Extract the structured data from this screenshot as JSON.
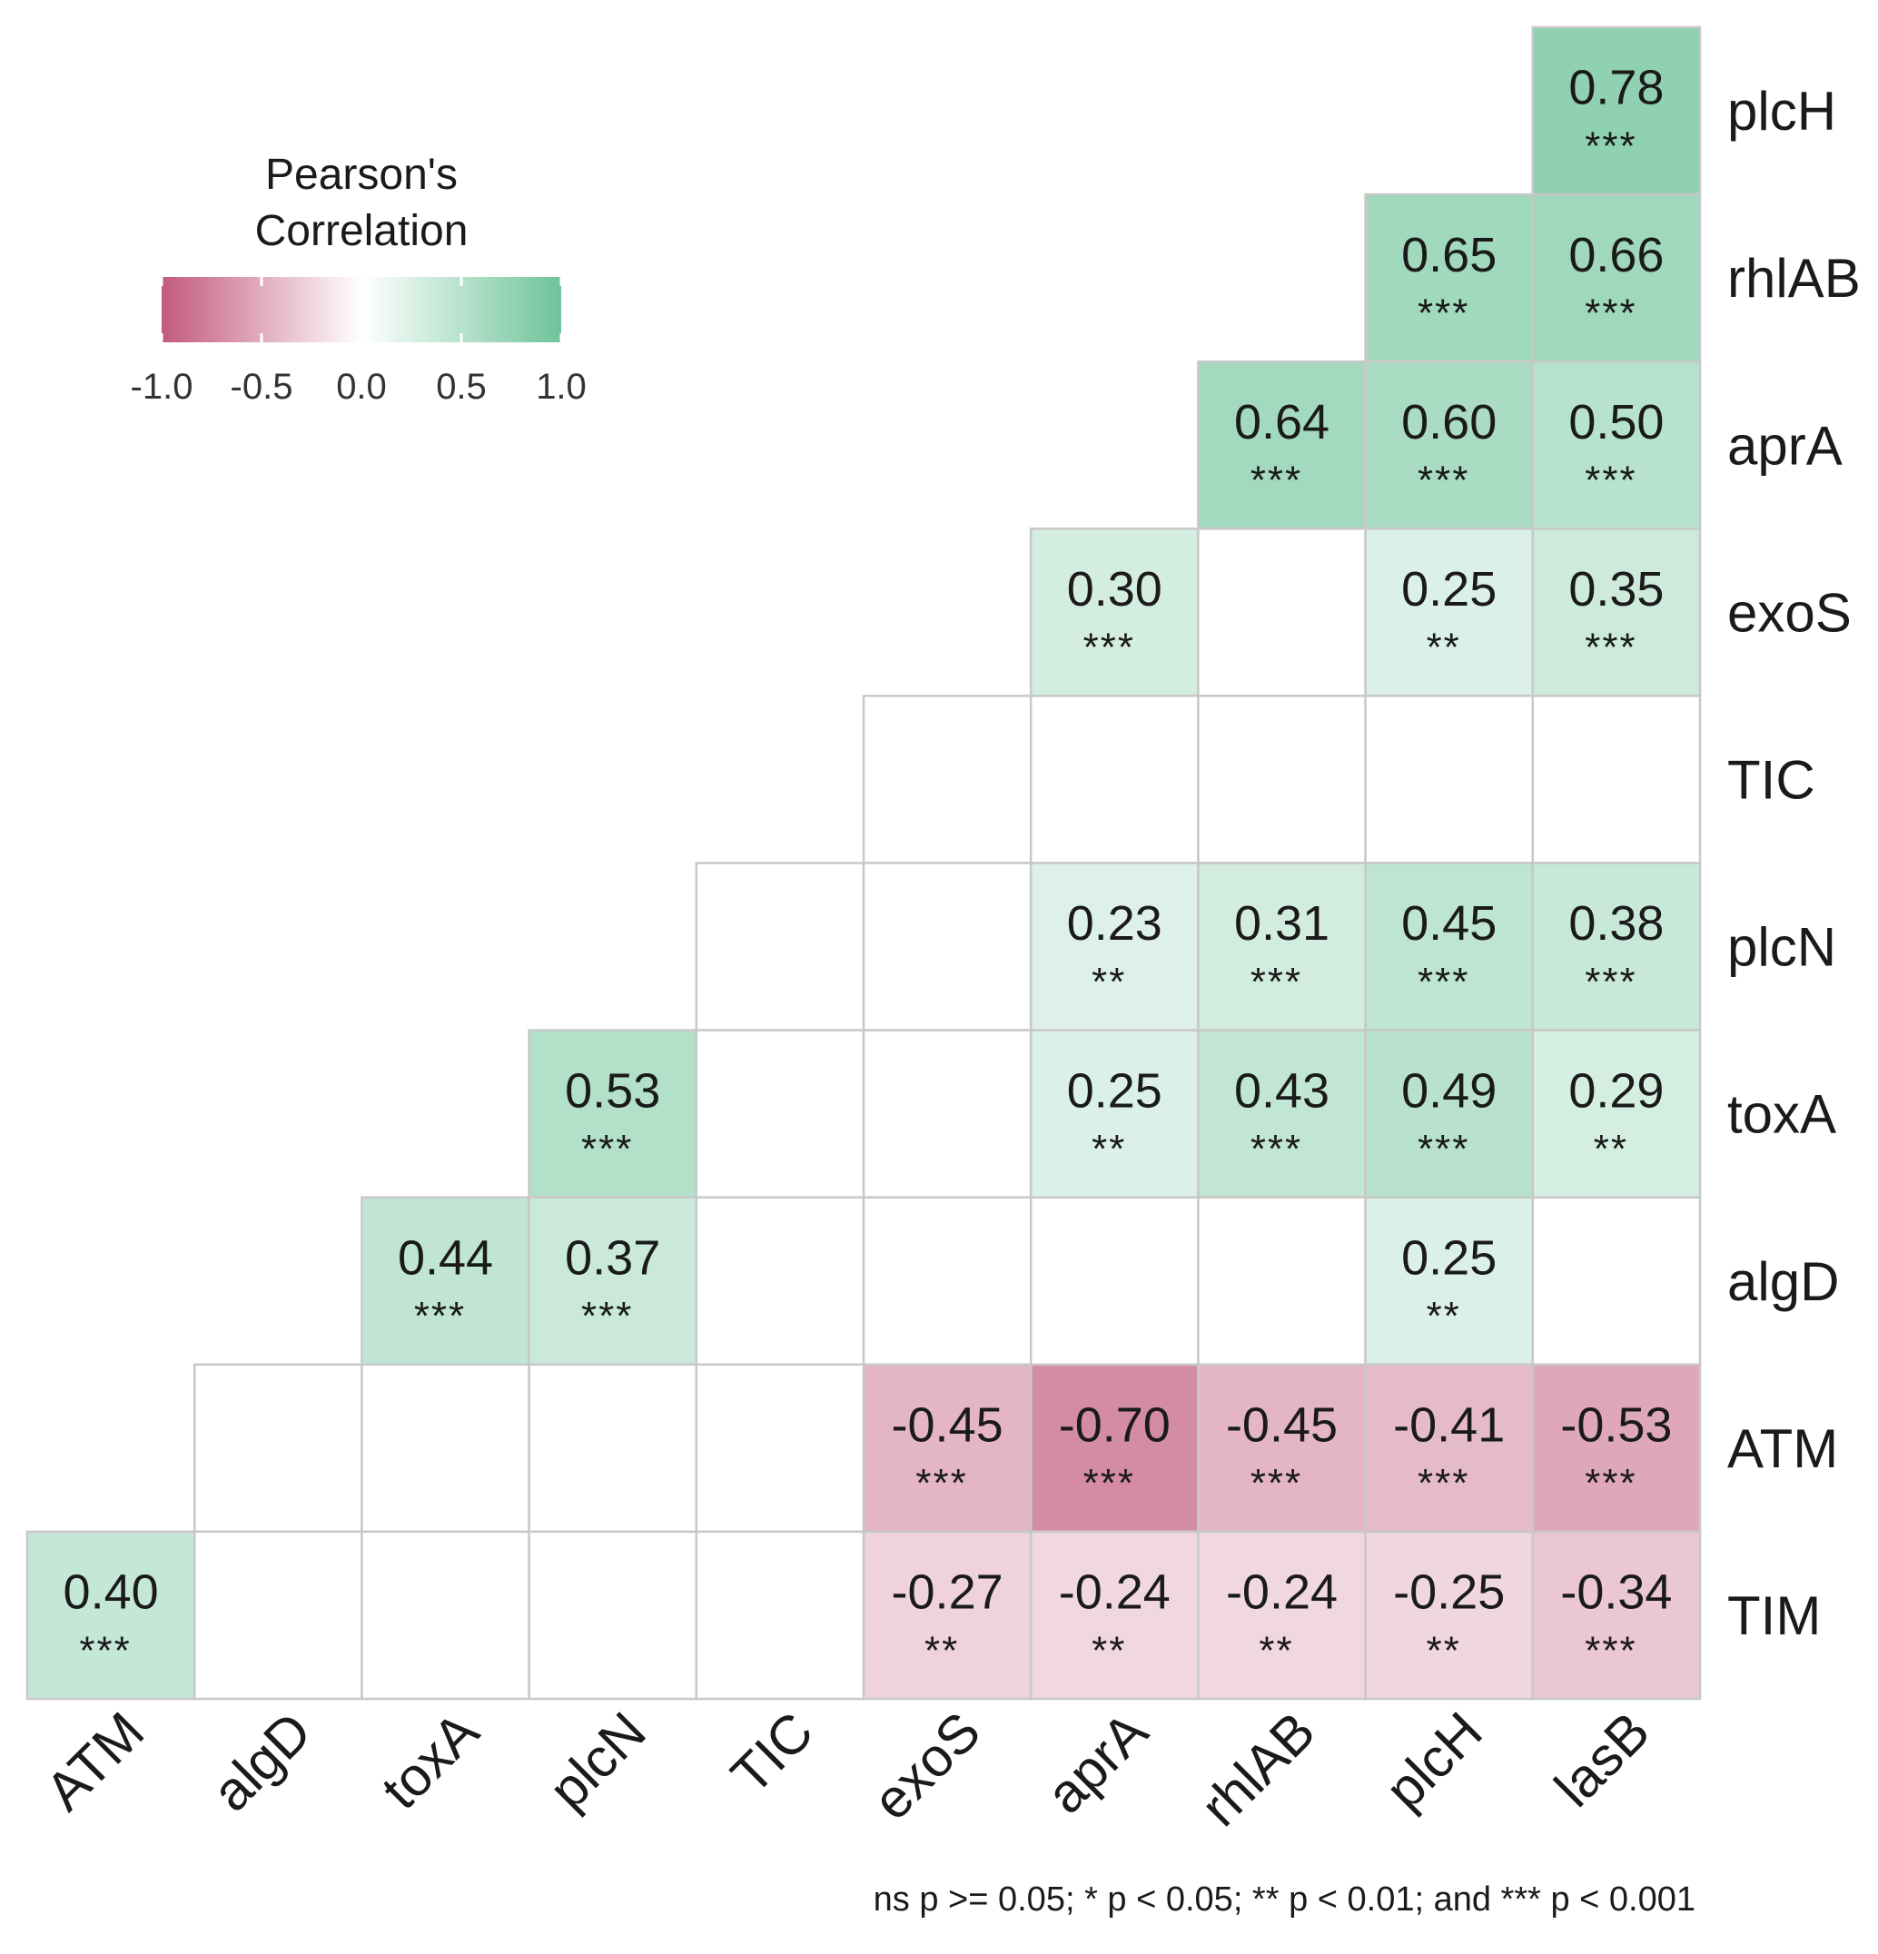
{
  "chart_data": {
    "type": "heatmap",
    "title": "",
    "legend": {
      "title_lines": [
        "Pearson's",
        "Correlation"
      ],
      "ticks": [
        "-1.0",
        "-0.5",
        "0.0",
        "0.5",
        "1.0"
      ],
      "tick_values": [
        -1.0,
        -0.5,
        0.0,
        0.5,
        1.0
      ],
      "range": [
        -1,
        1
      ],
      "placement": "top-left"
    },
    "colors": {
      "negative": "#c25a7c",
      "neutral": "#ffffff",
      "positive": "#6fc49a",
      "grid": "#c8c8c8"
    },
    "x_labels": [
      "ATM",
      "algD",
      "toxA",
      "plcN",
      "TIC",
      "exoS",
      "aprA",
      "rhlAB",
      "plcH",
      "lasB"
    ],
    "y_labels": [
      "plcH",
      "rhlAB",
      "aprA",
      "exoS",
      "TIC",
      "plcN",
      "toxA",
      "algD",
      "ATM",
      "TIM"
    ],
    "cells": [
      {
        "row": 0,
        "col": 9,
        "value": 0.78,
        "label": "0.78",
        "sig": "***"
      },
      {
        "row": 1,
        "col": 8,
        "value": 0.65,
        "label": "0.65",
        "sig": "***"
      },
      {
        "row": 1,
        "col": 9,
        "value": 0.66,
        "label": "0.66",
        "sig": "***"
      },
      {
        "row": 2,
        "col": 7,
        "value": 0.64,
        "label": "0.64",
        "sig": "***"
      },
      {
        "row": 2,
        "col": 8,
        "value": 0.6,
        "label": "0.60",
        "sig": "***"
      },
      {
        "row": 2,
        "col": 9,
        "value": 0.5,
        "label": "0.50",
        "sig": "***"
      },
      {
        "row": 3,
        "col": 6,
        "value": 0.3,
        "label": "0.30",
        "sig": "***"
      },
      {
        "row": 3,
        "col": 7,
        "value": null,
        "label": "",
        "sig": ""
      },
      {
        "row": 3,
        "col": 8,
        "value": 0.25,
        "label": "0.25",
        "sig": "**"
      },
      {
        "row": 3,
        "col": 9,
        "value": 0.35,
        "label": "0.35",
        "sig": "***"
      },
      {
        "row": 4,
        "col": 5,
        "value": null,
        "label": "",
        "sig": ""
      },
      {
        "row": 4,
        "col": 6,
        "value": null,
        "label": "",
        "sig": ""
      },
      {
        "row": 4,
        "col": 7,
        "value": null,
        "label": "",
        "sig": ""
      },
      {
        "row": 4,
        "col": 8,
        "value": null,
        "label": "",
        "sig": ""
      },
      {
        "row": 4,
        "col": 9,
        "value": null,
        "label": "",
        "sig": ""
      },
      {
        "row": 5,
        "col": 4,
        "value": null,
        "label": "",
        "sig": ""
      },
      {
        "row": 5,
        "col": 5,
        "value": null,
        "label": "",
        "sig": ""
      },
      {
        "row": 5,
        "col": 6,
        "value": 0.23,
        "label": "0.23",
        "sig": "**"
      },
      {
        "row": 5,
        "col": 7,
        "value": 0.31,
        "label": "0.31",
        "sig": "***"
      },
      {
        "row": 5,
        "col": 8,
        "value": 0.45,
        "label": "0.45",
        "sig": "***"
      },
      {
        "row": 5,
        "col": 9,
        "value": 0.38,
        "label": "0.38",
        "sig": "***"
      },
      {
        "row": 6,
        "col": 3,
        "value": 0.53,
        "label": "0.53",
        "sig": "***"
      },
      {
        "row": 6,
        "col": 4,
        "value": null,
        "label": "",
        "sig": ""
      },
      {
        "row": 6,
        "col": 5,
        "value": null,
        "label": "",
        "sig": ""
      },
      {
        "row": 6,
        "col": 6,
        "value": 0.25,
        "label": "0.25",
        "sig": "**"
      },
      {
        "row": 6,
        "col": 7,
        "value": 0.43,
        "label": "0.43",
        "sig": "***"
      },
      {
        "row": 6,
        "col": 8,
        "value": 0.49,
        "label": "0.49",
        "sig": "***"
      },
      {
        "row": 6,
        "col": 9,
        "value": 0.29,
        "label": "0.29",
        "sig": "**"
      },
      {
        "row": 7,
        "col": 2,
        "value": 0.44,
        "label": "0.44",
        "sig": "***"
      },
      {
        "row": 7,
        "col": 3,
        "value": 0.37,
        "label": "0.37",
        "sig": "***"
      },
      {
        "row": 7,
        "col": 4,
        "value": null,
        "label": "",
        "sig": ""
      },
      {
        "row": 7,
        "col": 5,
        "value": null,
        "label": "",
        "sig": ""
      },
      {
        "row": 7,
        "col": 6,
        "value": null,
        "label": "",
        "sig": ""
      },
      {
        "row": 7,
        "col": 7,
        "value": null,
        "label": "",
        "sig": ""
      },
      {
        "row": 7,
        "col": 8,
        "value": 0.25,
        "label": "0.25",
        "sig": "**"
      },
      {
        "row": 7,
        "col": 9,
        "value": null,
        "label": "",
        "sig": ""
      },
      {
        "row": 8,
        "col": 1,
        "value": null,
        "label": "",
        "sig": ""
      },
      {
        "row": 8,
        "col": 2,
        "value": null,
        "label": "",
        "sig": ""
      },
      {
        "row": 8,
        "col": 3,
        "value": null,
        "label": "",
        "sig": ""
      },
      {
        "row": 8,
        "col": 4,
        "value": null,
        "label": "",
        "sig": ""
      },
      {
        "row": 8,
        "col": 5,
        "value": -0.45,
        "label": "-0.45",
        "sig": "***"
      },
      {
        "row": 8,
        "col": 6,
        "value": -0.7,
        "label": "-0.70",
        "sig": "***"
      },
      {
        "row": 8,
        "col": 7,
        "value": -0.45,
        "label": "-0.45",
        "sig": "***"
      },
      {
        "row": 8,
        "col": 8,
        "value": -0.41,
        "label": "-0.41",
        "sig": "***"
      },
      {
        "row": 8,
        "col": 9,
        "value": -0.53,
        "label": "-0.53",
        "sig": "***"
      },
      {
        "row": 9,
        "col": 0,
        "value": 0.4,
        "label": "0.40",
        "sig": "***"
      },
      {
        "row": 9,
        "col": 1,
        "value": null,
        "label": "",
        "sig": ""
      },
      {
        "row": 9,
        "col": 2,
        "value": null,
        "label": "",
        "sig": ""
      },
      {
        "row": 9,
        "col": 3,
        "value": null,
        "label": "",
        "sig": ""
      },
      {
        "row": 9,
        "col": 4,
        "value": null,
        "label": "",
        "sig": ""
      },
      {
        "row": 9,
        "col": 5,
        "value": -0.27,
        "label": "-0.27",
        "sig": "**"
      },
      {
        "row": 9,
        "col": 6,
        "value": -0.24,
        "label": "-0.24",
        "sig": "**"
      },
      {
        "row": 9,
        "col": 7,
        "value": -0.24,
        "label": "-0.24",
        "sig": "**"
      },
      {
        "row": 9,
        "col": 8,
        "value": -0.25,
        "label": "-0.25",
        "sig": "**"
      },
      {
        "row": 9,
        "col": 9,
        "value": -0.34,
        "label": "-0.34",
        "sig": "***"
      }
    ],
    "footnote": "ns p >= 0.05; * p < 0.05; ** p < 0.01; and *** p < 0.001"
  }
}
